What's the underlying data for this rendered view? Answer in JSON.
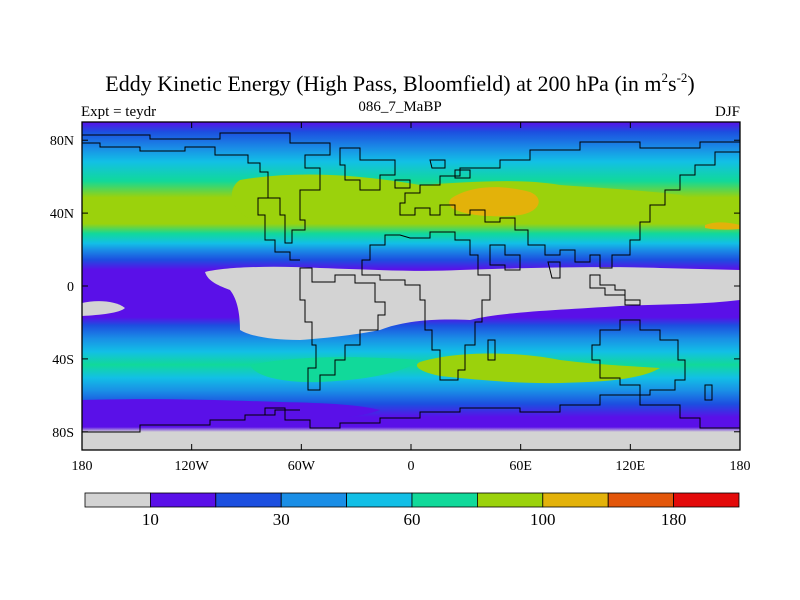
{
  "title": {
    "main": "Eddy Kinetic Energy (High Pass, Bloomfield) at 200 hPa (in m",
    "sup1": "2",
    "mid": "s",
    "sup2": "-2",
    "close": ")"
  },
  "subtitle": "086_7_MaBP",
  "left_label": "Expt = teydr",
  "right_label": "DJF",
  "map": {
    "projection": "cylindrical equidistant",
    "lon_range": [
      -180,
      180
    ],
    "lat_range": [
      -90,
      90
    ],
    "x_ticks": [
      {
        "lon": -180,
        "label": "180"
      },
      {
        "lon": -120,
        "label": "120W"
      },
      {
        "lon": -60,
        "label": "60W"
      },
      {
        "lon": 0,
        "label": "0"
      },
      {
        "lon": 60,
        "label": "60E"
      },
      {
        "lon": 120,
        "label": "120E"
      },
      {
        "lon": 180,
        "label": "180"
      }
    ],
    "y_ticks": [
      {
        "lat": 80,
        "label": "80N"
      },
      {
        "lat": 40,
        "label": "40N"
      },
      {
        "lat": 0,
        "label": "0"
      },
      {
        "lat": -40,
        "label": "40S"
      },
      {
        "lat": -80,
        "label": "80S"
      }
    ]
  },
  "colorbar": {
    "colors": [
      "#d3d3d3",
      "#5a10e8",
      "#1c4fe0",
      "#1a8ee6",
      "#12bfe6",
      "#11d99a",
      "#9bd20c",
      "#e3b20a",
      "#e3560a",
      "#e30a0a"
    ],
    "labels": [
      {
        "after_box": 1,
        "label": "10"
      },
      {
        "after_box": 3,
        "label": "30"
      },
      {
        "after_box": 5,
        "label": "60"
      },
      {
        "after_box": 7,
        "label": "100"
      },
      {
        "after_box": 9,
        "label": "180"
      }
    ]
  }
}
